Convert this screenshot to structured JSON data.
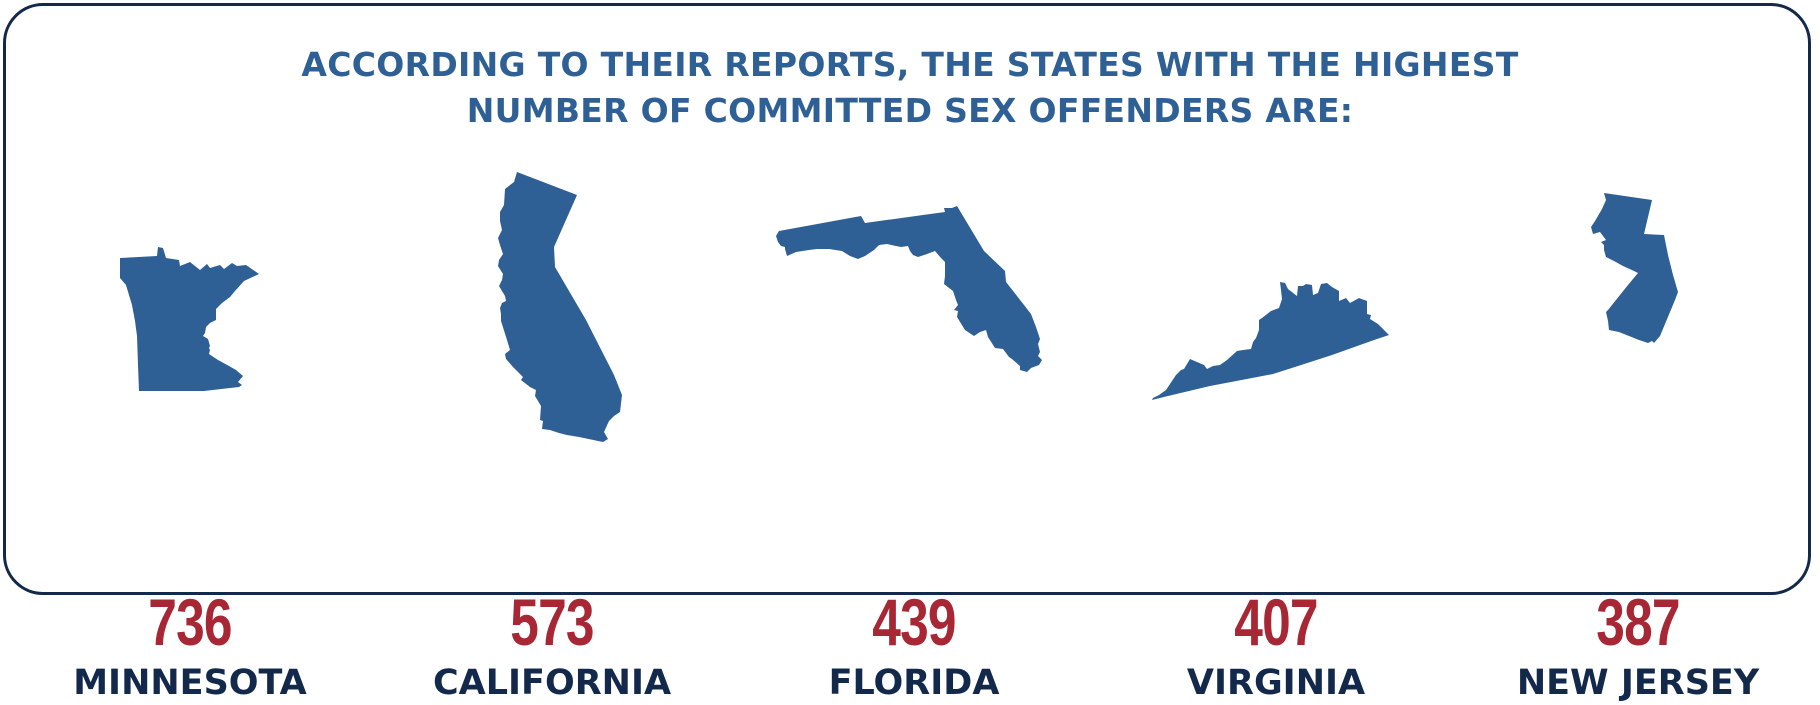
{
  "headline": {
    "line1": "ACCORDING TO THEIR REPORTS, THE STATES WITH THE HIGHEST",
    "line2": "NUMBER OF COMMITTED SEX OFFENDERS ARE:"
  },
  "colors": {
    "border": "#13294b",
    "headline": "#2e6095",
    "state_shape": "#2e6095",
    "count": "#a82735",
    "state_name": "#13294b"
  },
  "states": [
    {
      "icon": "minnesota-map-icon",
      "count": "736",
      "name": "MINNESOTA"
    },
    {
      "icon": "california-map-icon",
      "count": "573",
      "name": "CALIFORNIA"
    },
    {
      "icon": "florida-map-icon",
      "count": "439",
      "name": "FLORIDA"
    },
    {
      "icon": "virginia-map-icon",
      "count": "407",
      "name": "VIRGINIA"
    },
    {
      "icon": "new-jersey-map-icon",
      "count": "387",
      "name": "NEW JERSEY"
    }
  ]
}
